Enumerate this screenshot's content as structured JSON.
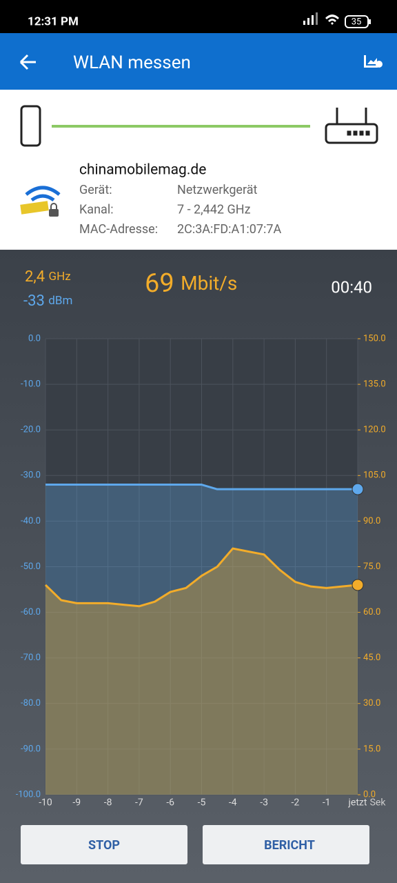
{
  "status_bar": {
    "time": "12:31 PM",
    "battery": "35"
  },
  "header": {
    "title": "WLAN messen"
  },
  "network": {
    "name": "chinamobilemag.de",
    "fields": [
      {
        "label": "Gerät:",
        "value": "Netzwerkgerät"
      },
      {
        "label": "Kanal:",
        "value": "7 - 2,442 GHz"
      },
      {
        "label": "MAC-Adresse:",
        "value": "2C:3A:FD:A1:07:7A"
      }
    ]
  },
  "readout": {
    "band": "2,4",
    "band_unit": "GHz",
    "signal": "-33",
    "signal_unit": "dBm",
    "speed": "69",
    "speed_unit": "Mbit/s",
    "timer": "00:40"
  },
  "chart_data": {
    "type": "line",
    "x": [
      -10,
      -9.5,
      -9,
      -8.5,
      -8,
      -7.5,
      -7,
      -6.5,
      -6,
      -5.5,
      -5,
      -4.5,
      -4,
      -3.5,
      -3,
      -2.5,
      -2,
      -1.5,
      -1,
      -0.5,
      0
    ],
    "series": [
      {
        "name": "dBm",
        "color": "#5ea8ec",
        "values": [
          -32,
          -32,
          -32,
          -32,
          -32,
          -32,
          -32,
          -32,
          -32,
          -32,
          -32,
          -33,
          -33,
          -33,
          -33,
          -33,
          -33,
          -33,
          -33,
          -33,
          -33
        ]
      },
      {
        "name": "Mbit/s",
        "color": "#f2ac2a",
        "axis": "y2",
        "values": [
          69,
          64,
          63,
          63,
          63,
          62.5,
          62,
          63.5,
          66.7,
          68,
          72,
          75,
          81,
          80,
          79,
          74,
          70,
          68.5,
          68,
          68.5,
          69
        ]
      }
    ],
    "xlim": [
      -10,
      0
    ],
    "xticks": [
      -10,
      -9,
      -8,
      -7,
      -6,
      -5,
      -4,
      -3,
      -2,
      -1,
      {
        "value": 0,
        "label": "jetzt"
      }
    ],
    "x_unit": "Sek",
    "ylim": [
      -100,
      0
    ],
    "yticks": [
      {
        "value": 0,
        "label": "0.0"
      },
      {
        "value": -10,
        "label": "-10.0"
      },
      {
        "value": -20,
        "label": "-20.0"
      },
      {
        "value": -30,
        "label": "-30.0"
      },
      {
        "value": -40,
        "label": "-40.0"
      },
      {
        "value": -50,
        "label": "-50.0"
      },
      {
        "value": -60,
        "label": "-60.0"
      },
      {
        "value": -70,
        "label": "-70.0"
      },
      {
        "value": -80,
        "label": "-80.0"
      },
      {
        "value": -90,
        "label": "-90.0"
      },
      {
        "value": -100,
        "label": "-100.0"
      }
    ],
    "y2lim": [
      0,
      150
    ],
    "y2ticks": [
      {
        "value": 150,
        "label": "150.0"
      },
      {
        "value": 135,
        "label": "135.0"
      },
      {
        "value": 120,
        "label": "120.0"
      },
      {
        "value": 105,
        "label": "105.0"
      },
      {
        "value": 90,
        "label": "90.0"
      },
      {
        "value": 75,
        "label": "75.0"
      },
      {
        "value": 60,
        "label": "60.0"
      },
      {
        "value": 45,
        "label": "45.0"
      },
      {
        "value": 30,
        "label": "30.0"
      },
      {
        "value": 15,
        "label": "15.0"
      },
      {
        "value": 0,
        "label": "0.0"
      }
    ],
    "grid": true
  },
  "buttons": [
    "STOP",
    "BERICHT"
  ]
}
